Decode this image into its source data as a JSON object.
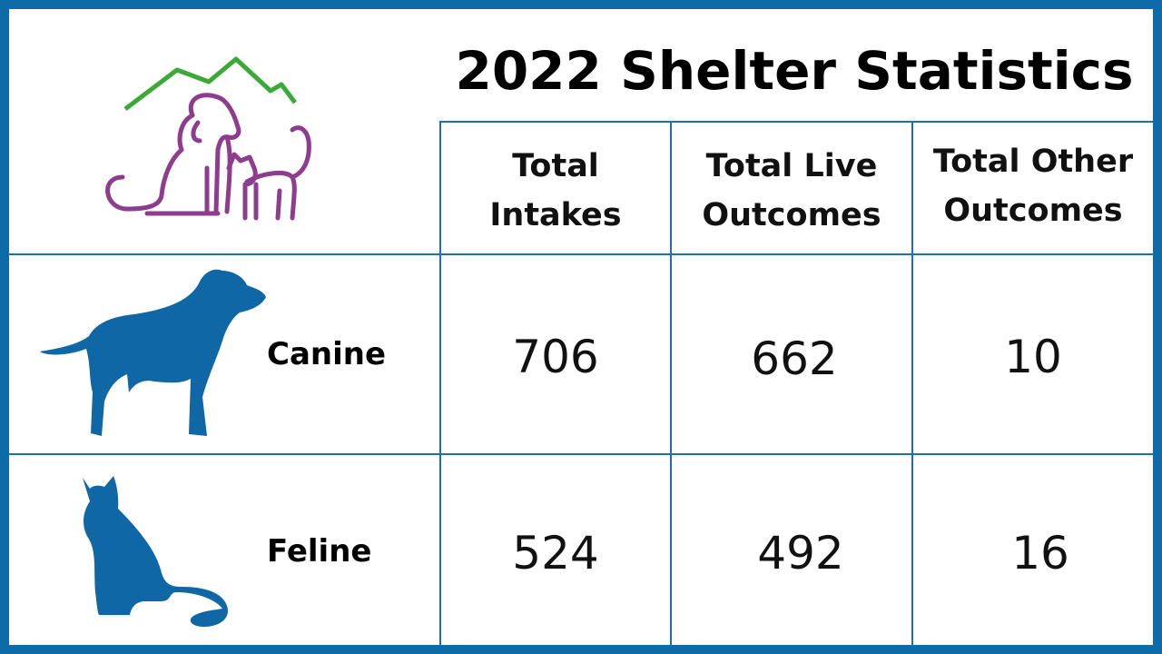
{
  "chart_data": {
    "type": "table",
    "title": "2022 Shelter Statistics",
    "columns": [
      {
        "l1": "Total",
        "l2": "Intakes"
      },
      {
        "l1": "Total Live",
        "l2": "Outcomes"
      },
      {
        "l1": "Total Other",
        "l2": "Outcomes"
      }
    ],
    "rows": [
      {
        "label": "Canine",
        "icon": "dog-silhouette-icon",
        "values": [
          "706",
          "662",
          "10"
        ]
      },
      {
        "label": "Feline",
        "icon": "cat-silhouette-icon",
        "values": [
          "524",
          "492",
          "16"
        ]
      }
    ]
  },
  "logo": {
    "icon": "dog-cat-mountain-logo-icon"
  },
  "colors": {
    "border": "#0f6aa8",
    "grid": "#1d70a8",
    "silhouette": "#0f67a6",
    "logo_line": "#8e3d8e",
    "mountain": "#3aa935"
  }
}
